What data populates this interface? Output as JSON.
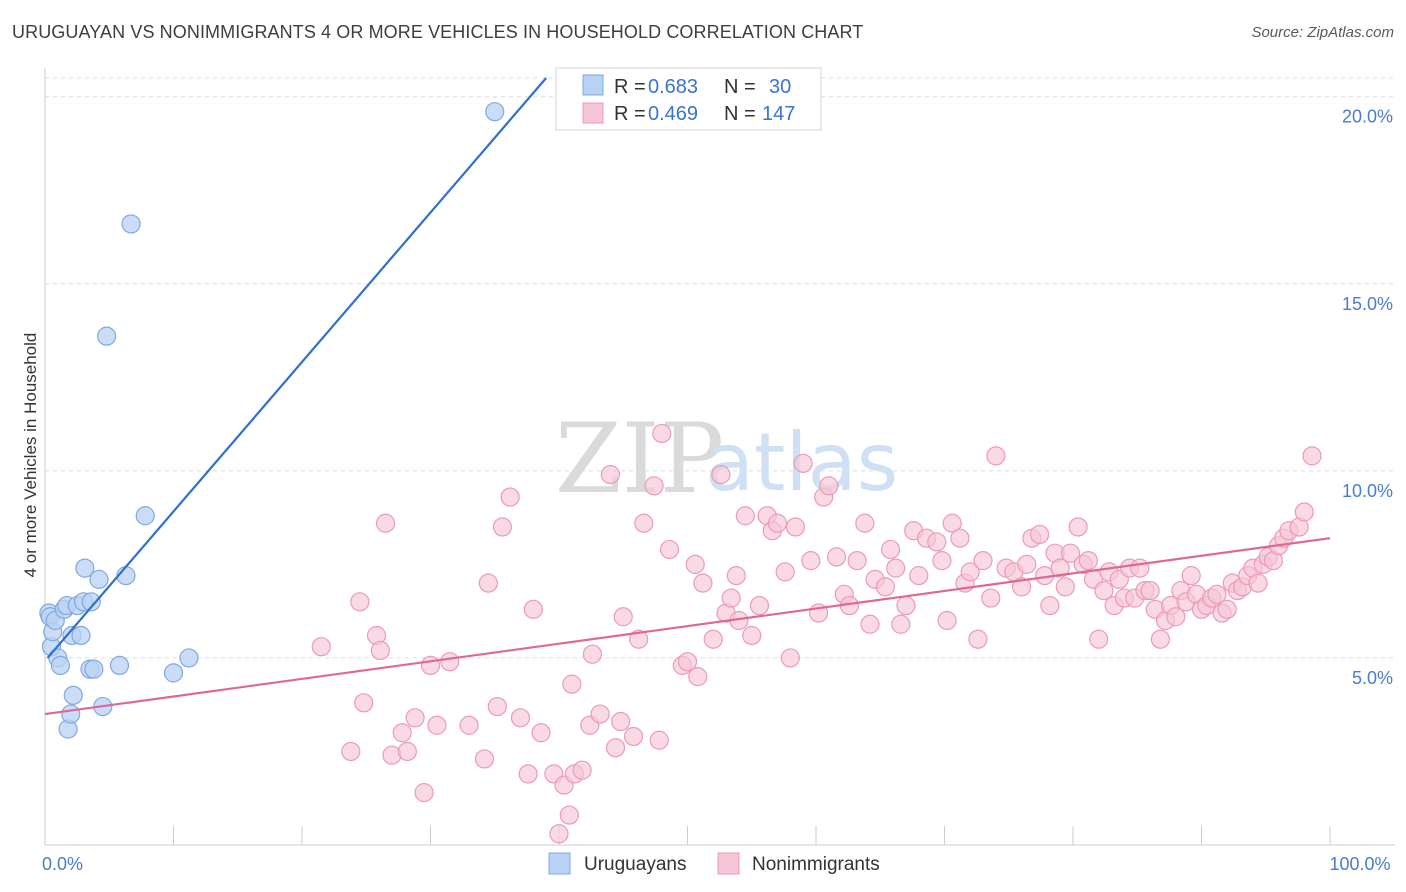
{
  "title": "URUGUAYAN VS NONIMMIGRANTS 4 OR MORE VEHICLES IN HOUSEHOLD CORRELATION CHART",
  "source": "Source: ZipAtlas.com",
  "watermark": {
    "zip": "ZIP",
    "atlas": "atlas"
  },
  "colors": {
    "blue_fill": "#b9d2f3",
    "blue_stroke": "#7ea9e0",
    "blue_line": "#2f6fcf",
    "pink_fill": "#f6c6d6",
    "pink_stroke": "#ec9ab6",
    "pink_line": "#e0669a",
    "grid": "#d8dbe0",
    "tick_text": "#4a7bd0"
  },
  "legend": {
    "rows": [
      {
        "r_label": "R =",
        "r_value": "0.683",
        "n_label": "N =",
        "n_value": "30"
      },
      {
        "r_label": "R =",
        "r_value": "0.469",
        "n_label": "N =",
        "n_value": "147"
      }
    ]
  },
  "bottom_legend": {
    "series1": "Uruguayans",
    "series2": "Nonimmigrants"
  },
  "chart_data": {
    "type": "scatter",
    "title": "URUGUAYAN VS NONIMMIGRANTS 4 OR MORE VEHICLES IN HOUSEHOLD CORRELATION CHART",
    "xlabel": "",
    "ylabel": "4 or more Vehicles in Household",
    "xlim": [
      0,
      100
    ],
    "ylim": [
      0,
      20.5
    ],
    "x_tick_labels": [
      {
        "value": 0,
        "label": "0.0%"
      },
      {
        "value": 100,
        "label": "100.0%"
      }
    ],
    "y_ticks": [
      {
        "value": 5,
        "label": "5.0%"
      },
      {
        "value": 10,
        "label": "10.0%"
      },
      {
        "value": 15,
        "label": "15.0%"
      },
      {
        "value": 20,
        "label": "20.0%"
      }
    ],
    "x_minor_ticks": [
      0,
      10,
      20,
      30,
      40,
      50,
      60,
      70,
      80,
      90,
      100
    ],
    "series": [
      {
        "name": "Uruguayans",
        "R": 0.683,
        "N": 30,
        "trend": {
          "x": [
            0.2,
            39
          ],
          "y": [
            5.0,
            20.5
          ]
        },
        "points": [
          [
            0.3,
            6.2
          ],
          [
            0.4,
            6.1
          ],
          [
            0.5,
            5.3
          ],
          [
            0.6,
            5.7
          ],
          [
            0.8,
            6.0
          ],
          [
            1.0,
            5.0
          ],
          [
            1.2,
            4.8
          ],
          [
            1.5,
            6.3
          ],
          [
            1.7,
            6.4
          ],
          [
            1.8,
            3.1
          ],
          [
            2.0,
            3.5
          ],
          [
            2.1,
            5.6
          ],
          [
            2.2,
            4.0
          ],
          [
            2.5,
            6.4
          ],
          [
            2.8,
            5.6
          ],
          [
            3.0,
            6.5
          ],
          [
            3.1,
            7.4
          ],
          [
            3.5,
            4.7
          ],
          [
            3.6,
            6.5
          ],
          [
            3.8,
            4.7
          ],
          [
            4.2,
            7.1
          ],
          [
            4.5,
            3.7
          ],
          [
            4.8,
            13.6
          ],
          [
            5.8,
            4.8
          ],
          [
            6.3,
            7.2
          ],
          [
            6.7,
            16.6
          ],
          [
            7.8,
            8.8
          ],
          [
            10.0,
            4.6
          ],
          [
            11.2,
            5.0
          ],
          [
            35.0,
            19.6
          ]
        ]
      },
      {
        "name": "Nonimmigrants",
        "R": 0.469,
        "N": 147,
        "trend": {
          "x": [
            0,
            100
          ],
          "y": [
            3.5,
            8.2
          ]
        },
        "points": [
          [
            21.5,
            5.3
          ],
          [
            23.8,
            2.5
          ],
          [
            24.5,
            6.5
          ],
          [
            24.8,
            3.8
          ],
          [
            25.8,
            5.6
          ],
          [
            26.1,
            5.2
          ],
          [
            26.5,
            8.6
          ],
          [
            27.0,
            2.4
          ],
          [
            27.8,
            3.0
          ],
          [
            28.2,
            2.5
          ],
          [
            28.8,
            3.4
          ],
          [
            29.5,
            1.4
          ],
          [
            30.0,
            4.8
          ],
          [
            30.5,
            3.2
          ],
          [
            31.5,
            4.9
          ],
          [
            33.0,
            3.2
          ],
          [
            34.2,
            2.3
          ],
          [
            34.5,
            7.0
          ],
          [
            35.2,
            3.7
          ],
          [
            35.6,
            8.5
          ],
          [
            36.2,
            9.3
          ],
          [
            37.0,
            3.4
          ],
          [
            37.6,
            1.9
          ],
          [
            38.0,
            6.3
          ],
          [
            38.6,
            3.0
          ],
          [
            39.6,
            1.9
          ],
          [
            40.0,
            0.3
          ],
          [
            40.4,
            1.6
          ],
          [
            40.8,
            0.8
          ],
          [
            41.0,
            4.3
          ],
          [
            41.2,
            1.9
          ],
          [
            41.8,
            2.0
          ],
          [
            42.4,
            3.2
          ],
          [
            42.6,
            5.1
          ],
          [
            43.2,
            3.5
          ],
          [
            44.0,
            9.9
          ],
          [
            44.4,
            2.6
          ],
          [
            44.8,
            3.3
          ],
          [
            45.0,
            6.1
          ],
          [
            45.8,
            2.9
          ],
          [
            46.2,
            5.5
          ],
          [
            46.6,
            8.6
          ],
          [
            47.4,
            9.6
          ],
          [
            47.8,
            2.8
          ],
          [
            48.0,
            11.0
          ],
          [
            48.6,
            7.9
          ],
          [
            49.6,
            4.8
          ],
          [
            50.0,
            4.9
          ],
          [
            50.6,
            7.5
          ],
          [
            50.8,
            4.5
          ],
          [
            51.2,
            7.0
          ],
          [
            52.0,
            5.5
          ],
          [
            52.6,
            9.9
          ],
          [
            53.0,
            6.2
          ],
          [
            53.4,
            6.6
          ],
          [
            53.8,
            7.2
          ],
          [
            54.0,
            6.0
          ],
          [
            54.5,
            8.8
          ],
          [
            55.0,
            5.6
          ],
          [
            55.6,
            6.4
          ],
          [
            56.2,
            8.8
          ],
          [
            56.6,
            8.4
          ],
          [
            57.0,
            8.6
          ],
          [
            57.6,
            7.3
          ],
          [
            58.0,
            5.0
          ],
          [
            58.4,
            8.5
          ],
          [
            59.0,
            10.2
          ],
          [
            59.6,
            7.6
          ],
          [
            60.2,
            6.2
          ],
          [
            60.6,
            9.3
          ],
          [
            61.0,
            9.6
          ],
          [
            61.6,
            7.7
          ],
          [
            62.2,
            6.7
          ],
          [
            62.6,
            6.4
          ],
          [
            63.2,
            7.6
          ],
          [
            63.8,
            8.6
          ],
          [
            64.2,
            5.9
          ],
          [
            64.6,
            7.1
          ],
          [
            65.4,
            6.9
          ],
          [
            65.8,
            7.9
          ],
          [
            66.2,
            7.4
          ],
          [
            66.6,
            5.9
          ],
          [
            67.0,
            6.4
          ],
          [
            67.6,
            8.4
          ],
          [
            68.0,
            7.2
          ],
          [
            68.6,
            8.2
          ],
          [
            69.4,
            8.1
          ],
          [
            69.8,
            7.6
          ],
          [
            70.2,
            6.0
          ],
          [
            70.6,
            8.6
          ],
          [
            71.2,
            8.2
          ],
          [
            71.6,
            7.0
          ],
          [
            72.0,
            7.3
          ],
          [
            72.6,
            5.5
          ],
          [
            73.0,
            7.6
          ],
          [
            73.6,
            6.6
          ],
          [
            74.0,
            10.4
          ],
          [
            74.8,
            7.4
          ],
          [
            75.4,
            7.3
          ],
          [
            76.0,
            6.9
          ],
          [
            76.4,
            7.5
          ],
          [
            76.8,
            8.2
          ],
          [
            77.4,
            8.3
          ],
          [
            77.8,
            7.2
          ],
          [
            78.2,
            6.4
          ],
          [
            78.6,
            7.8
          ],
          [
            79.0,
            7.4
          ],
          [
            79.4,
            6.9
          ],
          [
            79.8,
            7.8
          ],
          [
            80.4,
            8.5
          ],
          [
            80.8,
            7.5
          ],
          [
            81.2,
            7.6
          ],
          [
            81.6,
            7.1
          ],
          [
            82.0,
            5.5
          ],
          [
            82.4,
            6.8
          ],
          [
            82.8,
            7.3
          ],
          [
            83.2,
            6.4
          ],
          [
            83.6,
            7.1
          ],
          [
            84.0,
            6.6
          ],
          [
            84.4,
            7.4
          ],
          [
            84.8,
            6.6
          ],
          [
            85.2,
            7.4
          ],
          [
            85.6,
            6.8
          ],
          [
            86.0,
            6.8
          ],
          [
            86.4,
            6.3
          ],
          [
            86.8,
            5.5
          ],
          [
            87.2,
            6.0
          ],
          [
            87.6,
            6.4
          ],
          [
            88.0,
            6.1
          ],
          [
            88.4,
            6.8
          ],
          [
            88.8,
            6.5
          ],
          [
            89.2,
            7.2
          ],
          [
            89.6,
            6.7
          ],
          [
            90.0,
            6.3
          ],
          [
            90.4,
            6.4
          ],
          [
            90.8,
            6.6
          ],
          [
            91.2,
            6.7
          ],
          [
            91.6,
            6.2
          ],
          [
            92.0,
            6.3
          ],
          [
            92.4,
            7.0
          ],
          [
            92.8,
            6.8
          ],
          [
            93.2,
            6.9
          ],
          [
            93.6,
            7.2
          ],
          [
            94.0,
            7.4
          ],
          [
            94.4,
            7.0
          ],
          [
            94.8,
            7.5
          ],
          [
            95.2,
            7.7
          ],
          [
            95.6,
            7.6
          ],
          [
            96.0,
            8.0
          ],
          [
            96.4,
            8.2
          ],
          [
            96.8,
            8.4
          ],
          [
            97.6,
            8.5
          ],
          [
            98.0,
            8.9
          ],
          [
            98.6,
            10.4
          ]
        ]
      }
    ]
  }
}
